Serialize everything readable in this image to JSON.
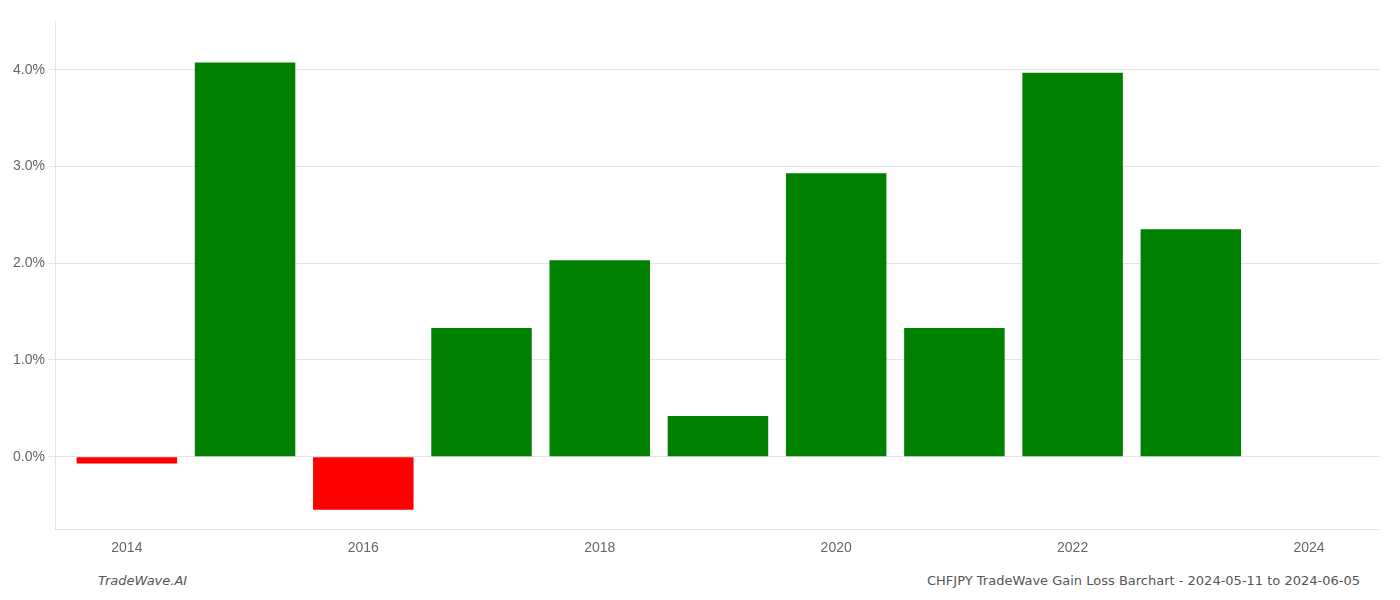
{
  "chart_data": {
    "type": "bar",
    "x": [
      2014,
      2015,
      2016,
      2017,
      2018,
      2019,
      2020,
      2021,
      2022,
      2023
    ],
    "values": [
      -0.07,
      4.075,
      -0.55,
      1.33,
      2.03,
      0.42,
      2.93,
      1.33,
      3.97,
      2.35
    ],
    "colors": [
      "#ff0000",
      "#008000",
      "#ff0000",
      "#008000",
      "#008000",
      "#008000",
      "#008000",
      "#008000",
      "#008000",
      "#008000"
    ],
    "xlim": [
      2013.4,
      2024.6
    ],
    "xticks": [
      2014,
      2016,
      2018,
      2020,
      2022,
      2024
    ],
    "ylim": [
      -0.75,
      4.5
    ],
    "yticks": [
      {
        "value": 0.0,
        "label": "0.0%"
      },
      {
        "value": 1.0,
        "label": "1.0%"
      },
      {
        "value": 2.0,
        "label": "2.0%"
      },
      {
        "value": 3.0,
        "label": "3.0%"
      },
      {
        "value": 4.0,
        "label": "4.0%"
      }
    ],
    "grid": true,
    "annotations": [
      "TradeWave.AI",
      "CHFJPY TradeWave Gain Loss Barchart - 2024-05-11 to 2024-06-05"
    ]
  }
}
